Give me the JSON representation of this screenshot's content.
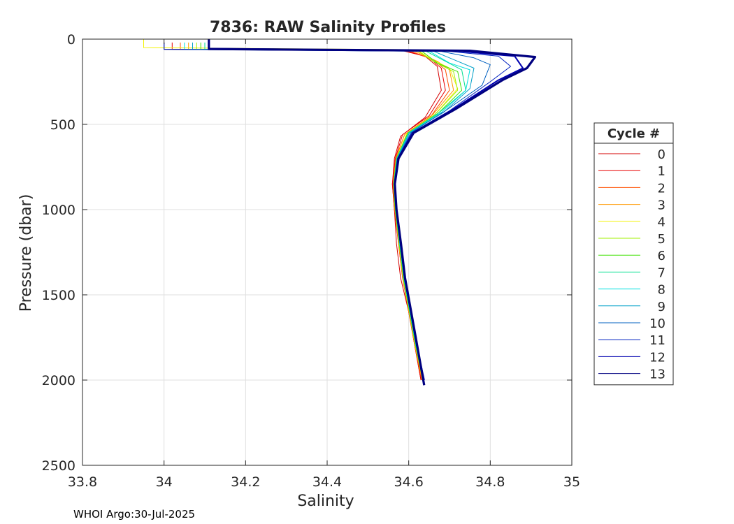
{
  "chart_data": {
    "type": "line",
    "title": "7836: RAW Salinity Profiles",
    "xlabel": "Salinity",
    "ylabel": "Pressure (dbar)",
    "xlim": [
      33.8,
      35
    ],
    "ylim": [
      0,
      2500
    ],
    "y_reversed": true,
    "xticks": [
      33.8,
      34,
      34.2,
      34.4,
      34.6,
      34.8,
      35
    ],
    "xtick_labels": [
      "33.8",
      "34",
      "34.2",
      "34.4",
      "34.6",
      "34.8",
      "35"
    ],
    "yticks": [
      0,
      500,
      1000,
      1500,
      2000,
      2500
    ],
    "ytick_labels": [
      "0",
      "500",
      "1000",
      "1500",
      "2000",
      "2500"
    ],
    "grid": true,
    "legend": {
      "title": "Cycle #",
      "placement": "right-outside",
      "entries": [
        "0",
        "1",
        "2",
        "3",
        "4",
        "5",
        "6",
        "7",
        "8",
        "9",
        "10",
        "11",
        "12",
        "13"
      ]
    },
    "series": [
      {
        "name": "0",
        "color": "#d40000",
        "points": [
          [
            34.0,
            20
          ],
          [
            34.0,
            60
          ],
          [
            34.58,
            65
          ],
          [
            34.64,
            100
          ],
          [
            34.67,
            160
          ],
          [
            34.68,
            300
          ],
          [
            34.64,
            460
          ],
          [
            34.58,
            570
          ],
          [
            34.565,
            700
          ],
          [
            34.56,
            850
          ],
          [
            34.565,
            1000
          ],
          [
            34.57,
            1200
          ],
          [
            34.58,
            1400
          ],
          [
            34.6,
            1600
          ],
          [
            34.615,
            1800
          ],
          [
            34.63,
            2000
          ]
        ]
      },
      {
        "name": "1",
        "color": "#e80000",
        "points": [
          [
            34.02,
            20
          ],
          [
            34.02,
            60
          ],
          [
            34.59,
            65
          ],
          [
            34.65,
            110
          ],
          [
            34.68,
            170
          ],
          [
            34.69,
            300
          ],
          [
            34.65,
            450
          ],
          [
            34.585,
            560
          ],
          [
            34.567,
            700
          ],
          [
            34.56,
            850
          ],
          [
            34.565,
            1000
          ],
          [
            34.575,
            1200
          ],
          [
            34.585,
            1400
          ],
          [
            34.6,
            1600
          ],
          [
            34.615,
            1800
          ],
          [
            34.63,
            2000
          ]
        ]
      },
      {
        "name": "2",
        "color": "#ff5000",
        "points": [
          [
            34.04,
            20
          ],
          [
            34.04,
            60
          ],
          [
            34.6,
            66
          ],
          [
            34.66,
            120
          ],
          [
            34.69,
            180
          ],
          [
            34.7,
            300
          ],
          [
            34.655,
            450
          ],
          [
            34.59,
            560
          ],
          [
            34.568,
            700
          ],
          [
            34.562,
            850
          ],
          [
            34.566,
            1000
          ],
          [
            34.575,
            1200
          ],
          [
            34.585,
            1400
          ],
          [
            34.6,
            1600
          ],
          [
            34.615,
            1800
          ],
          [
            34.632,
            2000
          ]
        ]
      },
      {
        "name": "3",
        "color": "#ff9a00",
        "points": [
          [
            34.06,
            20
          ],
          [
            34.06,
            60
          ],
          [
            34.61,
            66
          ],
          [
            34.67,
            130
          ],
          [
            34.7,
            180
          ],
          [
            34.71,
            300
          ],
          [
            34.66,
            440
          ],
          [
            34.59,
            560
          ],
          [
            34.569,
            700
          ],
          [
            34.562,
            850
          ],
          [
            34.566,
            1000
          ],
          [
            34.576,
            1200
          ],
          [
            34.586,
            1400
          ],
          [
            34.601,
            1600
          ],
          [
            34.616,
            1800
          ],
          [
            34.633,
            2000
          ]
        ]
      },
      {
        "name": "4",
        "color": "#f2f200",
        "points": [
          [
            33.95,
            0
          ],
          [
            33.95,
            50
          ],
          [
            34.62,
            62
          ],
          [
            34.65,
            110
          ],
          [
            34.7,
            170
          ],
          [
            34.72,
            290
          ],
          [
            34.665,
            440
          ],
          [
            34.595,
            555
          ],
          [
            34.57,
            700
          ],
          [
            34.563,
            850
          ],
          [
            34.567,
            1000
          ],
          [
            34.576,
            1200
          ],
          [
            34.586,
            1400
          ],
          [
            34.601,
            1600
          ],
          [
            34.616,
            1800
          ],
          [
            34.634,
            2000
          ]
        ]
      },
      {
        "name": "5",
        "color": "#a0f000",
        "points": [
          [
            34.08,
            20
          ],
          [
            34.08,
            60
          ],
          [
            34.62,
            66
          ],
          [
            34.66,
            130
          ],
          [
            34.71,
            190
          ],
          [
            34.72,
            300
          ],
          [
            34.665,
            440
          ],
          [
            34.597,
            555
          ],
          [
            34.57,
            700
          ],
          [
            34.563,
            850
          ],
          [
            34.567,
            1000
          ],
          [
            34.577,
            1200
          ],
          [
            34.587,
            1400
          ],
          [
            34.602,
            1600
          ],
          [
            34.617,
            1800
          ],
          [
            34.634,
            2000
          ]
        ]
      },
      {
        "name": "6",
        "color": "#3fe000",
        "points": [
          [
            34.09,
            20
          ],
          [
            34.09,
            60
          ],
          [
            34.63,
            67
          ],
          [
            34.67,
            140
          ],
          [
            34.72,
            190
          ],
          [
            34.73,
            300
          ],
          [
            34.67,
            440
          ],
          [
            34.598,
            550
          ],
          [
            34.57,
            700
          ],
          [
            34.563,
            850
          ],
          [
            34.567,
            1000
          ],
          [
            34.577,
            1200
          ],
          [
            34.587,
            1400
          ],
          [
            34.602,
            1600
          ],
          [
            34.617,
            1800
          ],
          [
            34.635,
            2000
          ]
        ]
      },
      {
        "name": "7",
        "color": "#00e090",
        "points": [
          [
            34.1,
            20
          ],
          [
            34.1,
            60
          ],
          [
            34.64,
            68
          ],
          [
            34.69,
            130
          ],
          [
            34.73,
            180
          ],
          [
            34.74,
            300
          ],
          [
            34.675,
            430
          ],
          [
            34.6,
            550
          ],
          [
            34.571,
            700
          ],
          [
            34.564,
            850
          ],
          [
            34.568,
            1000
          ],
          [
            34.578,
            1200
          ],
          [
            34.588,
            1400
          ],
          [
            34.603,
            1600
          ],
          [
            34.618,
            1800
          ],
          [
            34.635,
            2000
          ]
        ]
      },
      {
        "name": "8",
        "color": "#00e0e0",
        "points": [
          [
            34.05,
            20
          ],
          [
            34.05,
            60
          ],
          [
            34.65,
            70
          ],
          [
            34.7,
            140
          ],
          [
            34.75,
            180
          ],
          [
            34.74,
            300
          ],
          [
            34.68,
            430
          ],
          [
            34.6,
            550
          ],
          [
            34.571,
            700
          ],
          [
            34.564,
            850
          ],
          [
            34.568,
            1000
          ],
          [
            34.578,
            1200
          ],
          [
            34.588,
            1400
          ],
          [
            34.603,
            1600
          ],
          [
            34.618,
            1800
          ],
          [
            34.636,
            2000
          ]
        ]
      },
      {
        "name": "9",
        "color": "#00a0c8",
        "points": [
          [
            34.07,
            20
          ],
          [
            34.07,
            60
          ],
          [
            34.66,
            70
          ],
          [
            34.72,
            130
          ],
          [
            34.76,
            170
          ],
          [
            34.75,
            290
          ],
          [
            34.685,
            430
          ],
          [
            34.602,
            550
          ],
          [
            34.572,
            700
          ],
          [
            34.564,
            850
          ],
          [
            34.568,
            1000
          ],
          [
            34.579,
            1200
          ],
          [
            34.589,
            1400
          ],
          [
            34.604,
            1600
          ],
          [
            34.619,
            1800
          ],
          [
            34.636,
            2000
          ]
        ]
      },
      {
        "name": "10",
        "color": "#0060c0",
        "points": [
          [
            34.0,
            20
          ],
          [
            34.0,
            60
          ],
          [
            34.68,
            72
          ],
          [
            34.76,
            110
          ],
          [
            34.8,
            150
          ],
          [
            34.78,
            270
          ],
          [
            34.69,
            420
          ],
          [
            34.605,
            550
          ],
          [
            34.572,
            700
          ],
          [
            34.565,
            850
          ],
          [
            34.569,
            1000
          ],
          [
            34.579,
            1200
          ],
          [
            34.589,
            1400
          ],
          [
            34.604,
            1600
          ],
          [
            34.619,
            1800
          ],
          [
            34.637,
            2000
          ]
        ]
      },
      {
        "name": "11",
        "color": "#0020c0",
        "points": [
          [
            34.0,
            20
          ],
          [
            34.0,
            60
          ],
          [
            34.7,
            72
          ],
          [
            34.82,
            100
          ],
          [
            34.85,
            160
          ],
          [
            34.8,
            250
          ],
          [
            34.7,
            420
          ],
          [
            34.607,
            550
          ],
          [
            34.573,
            700
          ],
          [
            34.565,
            850
          ],
          [
            34.569,
            1000
          ],
          [
            34.58,
            1200
          ],
          [
            34.59,
            1400
          ],
          [
            34.605,
            1600
          ],
          [
            34.62,
            1800
          ],
          [
            34.637,
            2000
          ]
        ]
      },
      {
        "name": "12",
        "color": "#0000b0",
        "points": [
          [
            34.11,
            0
          ],
          [
            34.11,
            55
          ],
          [
            34.72,
            70
          ],
          [
            34.86,
            100
          ],
          [
            34.88,
            170
          ],
          [
            34.82,
            240
          ],
          [
            34.71,
            410
          ],
          [
            34.61,
            550
          ],
          [
            34.574,
            700
          ],
          [
            34.566,
            850
          ],
          [
            34.57,
            1000
          ],
          [
            34.58,
            1200
          ],
          [
            34.59,
            1400
          ],
          [
            34.605,
            1600
          ],
          [
            34.62,
            1800
          ],
          [
            34.638,
            2000
          ]
        ]
      },
      {
        "name": "13",
        "color": "#000080",
        "points": [
          [
            34.11,
            0
          ],
          [
            34.11,
            58
          ],
          [
            34.75,
            68
          ],
          [
            34.91,
            105
          ],
          [
            34.89,
            170
          ],
          [
            34.83,
            240
          ],
          [
            34.715,
            410
          ],
          [
            34.612,
            550
          ],
          [
            34.575,
            700
          ],
          [
            34.566,
            850
          ],
          [
            34.57,
            1000
          ],
          [
            34.581,
            1200
          ],
          [
            34.591,
            1400
          ],
          [
            34.606,
            1600
          ],
          [
            34.621,
            1800
          ],
          [
            34.638,
            2030
          ]
        ]
      }
    ]
  },
  "footer": {
    "credit": "WHOI Argo:30-Jul-2025"
  }
}
